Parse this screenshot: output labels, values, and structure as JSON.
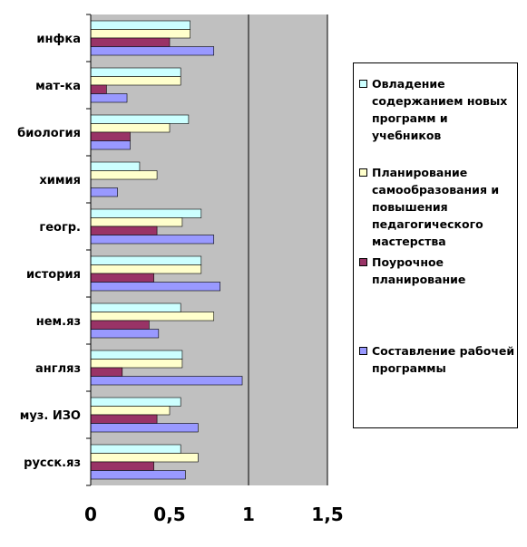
{
  "chart_data": {
    "type": "bar",
    "orientation": "horizontal",
    "categories": [
      "инфка",
      "мат-ка",
      "биология",
      "химия",
      "геогр.",
      "история",
      "нем.яз",
      "англяз",
      "муз. ИЗО",
      "русск.яз"
    ],
    "series": [
      {
        "name": "Овладение содержанием новых программ и учебников",
        "color": "#ccffff",
        "values": [
          0.63,
          0.57,
          0.62,
          0.31,
          0.7,
          0.7,
          0.57,
          0.58,
          0.57,
          0.57
        ]
      },
      {
        "name": "Планирование самообразования и повышения педагогического мастерства",
        "color": "#ffffcc",
        "values": [
          0.63,
          0.57,
          0.5,
          0.42,
          0.58,
          0.7,
          0.78,
          0.58,
          0.5,
          0.68
        ]
      },
      {
        "name": "Поурочное планирование",
        "color": "#993366",
        "values": [
          0.5,
          0.1,
          0.25,
          0.0,
          0.42,
          0.4,
          0.37,
          0.2,
          0.42,
          0.4
        ]
      },
      {
        "name": "Составление рабочей программы",
        "color": "#9999ff",
        "values": [
          0.78,
          0.23,
          0.25,
          0.17,
          0.78,
          0.82,
          0.43,
          0.96,
          0.68,
          0.6
        ]
      }
    ],
    "xlim": [
      0,
      1.5
    ],
    "xticks": [
      "0",
      "0,5",
      "1",
      "1,5"
    ],
    "plot_background": "#c0c0c0",
    "gridlines": "vertical major",
    "legend": "right"
  }
}
